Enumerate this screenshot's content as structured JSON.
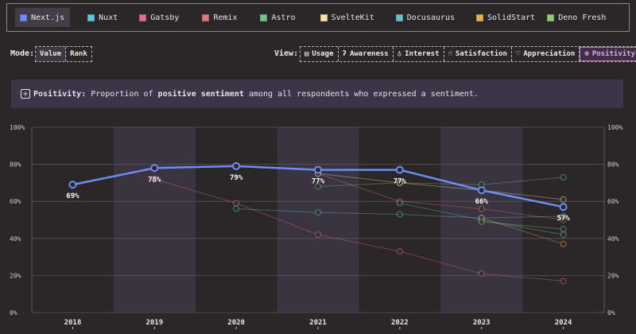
{
  "legend": {
    "items": [
      {
        "label": "Next.js",
        "color": "#6e8cf5",
        "active": true
      },
      {
        "label": "Nuxt",
        "color": "#62c6e0",
        "active": false
      },
      {
        "label": "Gatsby",
        "color": "#e36f8a",
        "active": false
      },
      {
        "label": "Remix",
        "color": "#e37a6f",
        "active": false
      },
      {
        "label": "Astro",
        "color": "#6fc98a",
        "active": false
      },
      {
        "label": "SvelteKit",
        "color": "#f2e7a8",
        "active": false
      },
      {
        "label": "Docusaurus",
        "color": "#5fc6c6",
        "active": false
      },
      {
        "label": "SolidStart",
        "color": "#e8b34f",
        "active": false
      },
      {
        "label": "Deno Fresh",
        "color": "#8ccf78",
        "active": false
      }
    ]
  },
  "mode": {
    "title": "Mode:",
    "options": [
      {
        "label": "Value",
        "active": true
      },
      {
        "label": "Rank",
        "active": false
      }
    ]
  },
  "view": {
    "title": "View:",
    "options": [
      {
        "label": "Usage",
        "icon": "document-icon"
      },
      {
        "label": "Awareness",
        "icon": "ear-icon"
      },
      {
        "label": "Interest",
        "icon": "lightbulb-icon"
      },
      {
        "label": "Satisfaction",
        "icon": "thumbs-up-icon"
      },
      {
        "label": "Appreciation",
        "icon": "heart-icon"
      },
      {
        "label": "Positivity",
        "icon": "plus-circle-icon",
        "active": true
      }
    ]
  },
  "info": {
    "term": "Positivity:",
    "text_before": " Proportion of ",
    "emphasis": "positive sentiment",
    "text_after": " among all respondents who expressed a sentiment."
  },
  "chart_data": {
    "type": "line",
    "x": [
      "2018",
      "2019",
      "2020",
      "2021",
      "2022",
      "2023",
      "2024"
    ],
    "ylim": [
      0,
      100
    ],
    "yticks": [
      "0%",
      "20%",
      "40%",
      "60%",
      "80%",
      "100%"
    ],
    "grid": true,
    "highlight_series": "Next.js",
    "series": [
      {
        "name": "Next.js",
        "color": "#6e8cf5",
        "values": [
          69,
          78,
          79,
          77,
          77,
          66,
          57
        ],
        "labels": [
          "69%",
          "78%",
          "79%",
          "77%",
          "77%",
          "66%",
          "57%"
        ]
      },
      {
        "name": "Gatsby",
        "color": "#e36f8a",
        "values": [
          null,
          72,
          59,
          42,
          33,
          21,
          17
        ]
      },
      {
        "name": "Nuxt",
        "color": "#62c6e0",
        "values": [
          null,
          null,
          56,
          54,
          53,
          51,
          52
        ]
      },
      {
        "name": "Remix",
        "color": "#e37a6f",
        "values": [
          null,
          null,
          null,
          75,
          60,
          56,
          50
        ]
      },
      {
        "name": "Astro",
        "color": "#6fc98a",
        "values": [
          null,
          null,
          null,
          68,
          70,
          69,
          73
        ]
      },
      {
        "name": "SvelteKit",
        "color": "#f2e7a8",
        "values": [
          null,
          null,
          null,
          75,
          70,
          66,
          61
        ]
      },
      {
        "name": "Docusaurus",
        "color": "#5fc6c6",
        "values": [
          null,
          null,
          null,
          null,
          59,
          50,
          42
        ]
      },
      {
        "name": "SolidStart",
        "color": "#e8b34f",
        "values": [
          null,
          null,
          null,
          null,
          null,
          51,
          37
        ]
      },
      {
        "name": "Deno Fresh",
        "color": "#8ccf78",
        "values": [
          null,
          null,
          null,
          null,
          null,
          49,
          45
        ]
      }
    ]
  }
}
